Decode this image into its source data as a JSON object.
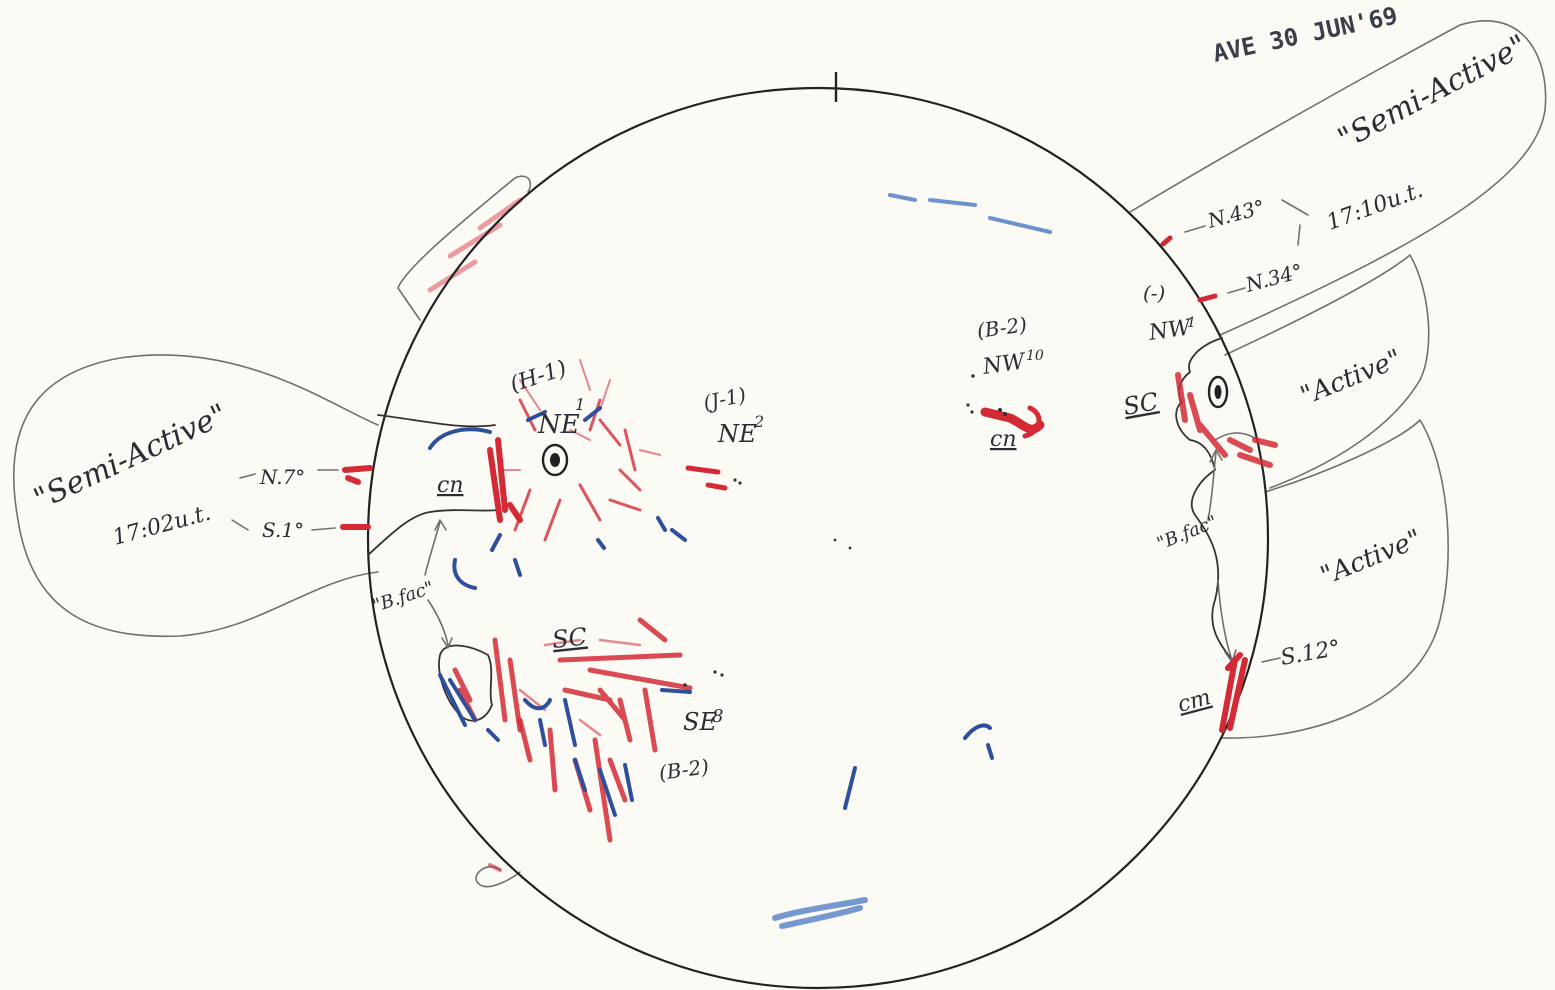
{
  "stamp": "AVE  30 JUN'69",
  "colors": {
    "paper": "#fbfaf5",
    "pencil": "#707070",
    "ink": "#2c2c34",
    "red": "#d42a36",
    "blue": "#2e4f9c",
    "light_blue": "#5c86c8"
  },
  "east_limb": {
    "label": "\"Semi-Active\"",
    "time": "17:02u.t.",
    "lat_north": "N.7°",
    "lat_south": "S.1°"
  },
  "west_limb": {
    "label_upper": "\"Semi-Active\"",
    "time": "17:10u.t.",
    "lat_1": "N.43°",
    "lat_2": "N.34°",
    "label_active_1": "\"Active\"",
    "label_active_2": "\"Active\"",
    "lat_south": "S.12°"
  },
  "regions": {
    "ne": {
      "class": "(H-1)",
      "name": "NE",
      "sub": "1"
    },
    "j1": {
      "class": "(J-1)",
      "name": "NE",
      "sub": "2"
    },
    "nw10": {
      "class": "(B-2)",
      "name": "NW",
      "sub": "10"
    },
    "nw1": {
      "class": "(-)",
      "name": "NW",
      "sub": "1"
    },
    "se8": {
      "name": "SE",
      "sub": "8",
      "class": "(B-2)"
    }
  },
  "annotations": {
    "cn_east": "cn",
    "cn_nw": "cn",
    "cm_west": "cm",
    "sc_south": "SC",
    "sc_west": "SC",
    "bfac_east": "\"B.fac\"",
    "bfac_west": "\"B.fac\""
  }
}
